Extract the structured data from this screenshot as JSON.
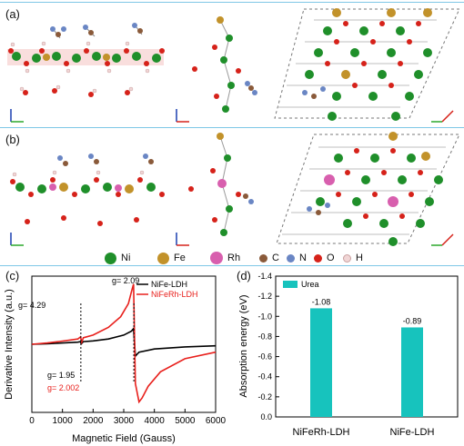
{
  "panels": {
    "a": "(a)",
    "b": "(b)",
    "c": "(c)",
    "d": "(d)"
  },
  "atom_legend": [
    {
      "label": "Ni",
      "color": "#1f8f2a"
    },
    {
      "label": "Fe",
      "color": "#c2922a"
    },
    {
      "label": "Rh",
      "color": "#d85fae"
    },
    {
      "label": "C",
      "color": "#8a5a3a"
    },
    {
      "label": "N",
      "color": "#6a86c4"
    },
    {
      "label": "O",
      "color": "#d6221a"
    },
    {
      "label": "H",
      "color": "#f1d6d6"
    }
  ],
  "chart_data": [
    {
      "type": "line",
      "xlabel": "Magnetic Field (Gauss)",
      "ylabel": "Derivative Intensity (a.u.)",
      "xlim": [
        0,
        6000
      ],
      "x_ticks": [
        "0",
        "1000",
        "2000",
        "3000",
        "4000",
        "5000",
        "6000"
      ],
      "legend_position": "top-right",
      "series": [
        {
          "name": "NiFe-LDH",
          "color": "#000000",
          "points": [
            [
              0,
              0
            ],
            [
              500,
              0.02
            ],
            [
              1000,
              0.05
            ],
            [
              1500,
              0.08
            ],
            [
              1580,
              0.1
            ],
            [
              1620,
              0.02
            ],
            [
              1680,
              0.1
            ],
            [
              2000,
              0.13
            ],
            [
              2500,
              0.2
            ],
            [
              3000,
              0.35
            ],
            [
              3250,
              0.5
            ],
            [
              3320,
              0.6
            ],
            [
              3380,
              -0.45
            ],
            [
              3500,
              -0.3
            ],
            [
              4000,
              -0.18
            ],
            [
              5000,
              -0.1
            ],
            [
              6000,
              -0.06
            ]
          ]
        },
        {
          "name": "NiFeRh-LDH",
          "color": "#e8201c",
          "points": [
            [
              0,
              0
            ],
            [
              500,
              0.05
            ],
            [
              1000,
              0.12
            ],
            [
              1500,
              0.2
            ],
            [
              1590,
              0.28
            ],
            [
              1630,
              0.08
            ],
            [
              1680,
              0.25
            ],
            [
              2000,
              0.35
            ],
            [
              2500,
              0.65
            ],
            [
              2900,
              1.05
            ],
            [
              3150,
              1.55
            ],
            [
              3260,
              2.05
            ],
            [
              3320,
              2.3
            ],
            [
              3380,
              -1.5
            ],
            [
              3500,
              -2.2
            ],
            [
              3600,
              -2.05
            ],
            [
              3800,
              -1.6
            ],
            [
              4200,
              -1.05
            ],
            [
              5000,
              -0.55
            ],
            [
              6000,
              -0.3
            ]
          ]
        }
      ],
      "annotations": [
        {
          "text": "g= 4.29",
          "color": "#000000"
        },
        {
          "text": "g= 2.09",
          "color": "#000000"
        },
        {
          "text": "g= 1.95",
          "color": "#000000"
        },
        {
          "text": "g= 2.002",
          "color": "#e8201c"
        }
      ]
    },
    {
      "type": "bar",
      "categories": [
        "NiFeRh-LDH",
        "NiFe-LDH"
      ],
      "values": [
        -1.08,
        -0.89
      ],
      "value_labels": [
        "-1.08",
        "-0.89"
      ],
      "ylabel": "Absorption energy (eV)",
      "ylim": [
        0,
        -1.4
      ],
      "y_ticks": [
        "0.0",
        "-0.2",
        "-0.4",
        "-0.6",
        "-0.8",
        "-1.0",
        "-1.2",
        "-1.4"
      ],
      "legend": [
        "Urea"
      ],
      "legend_position": "top-left",
      "bar_color": "#17c3bd"
    }
  ]
}
